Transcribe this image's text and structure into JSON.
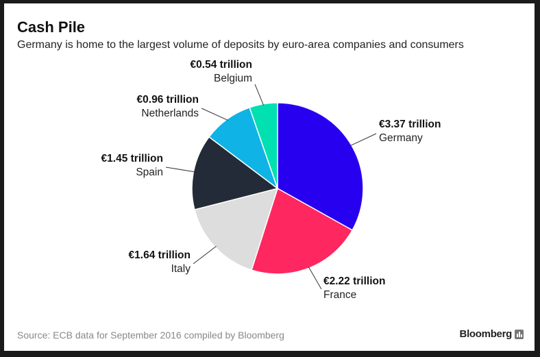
{
  "header": {
    "title": "Cash Pile",
    "subtitle": "Germany is home to the largest volume of deposits by euro-area companies and consumers"
  },
  "footer": {
    "source": "Source: ECB data for September 2016 compiled by Bloomberg",
    "brand": "Bloomberg",
    "brand_icon": "bloomberg-bars-icon"
  },
  "chart_data": {
    "type": "pie",
    "title": "Cash Pile",
    "subtitle": "Germany is home to the largest volume of deposits by euro-area companies and consumers",
    "unit": "trillion euros",
    "slices": [
      {
        "name": "Germany",
        "value": 3.37,
        "label": "€3.37 trillion",
        "color": "#2800f0"
      },
      {
        "name": "France",
        "value": 2.22,
        "label": "€2.22 trillion",
        "color": "#ff2760"
      },
      {
        "name": "Italy",
        "value": 1.64,
        "label": "€1.64 trillion",
        "color": "#dddddd"
      },
      {
        "name": "Spain",
        "value": 1.45,
        "label": "€1.45 trillion",
        "color": "#232b38"
      },
      {
        "name": "Netherlands",
        "value": 0.96,
        "label": "€0.96 trillion",
        "color": "#0fb3e6"
      },
      {
        "name": "Belgium",
        "value": 0.54,
        "label": "€0.54 trillion",
        "color": "#00e0b0"
      }
    ]
  }
}
